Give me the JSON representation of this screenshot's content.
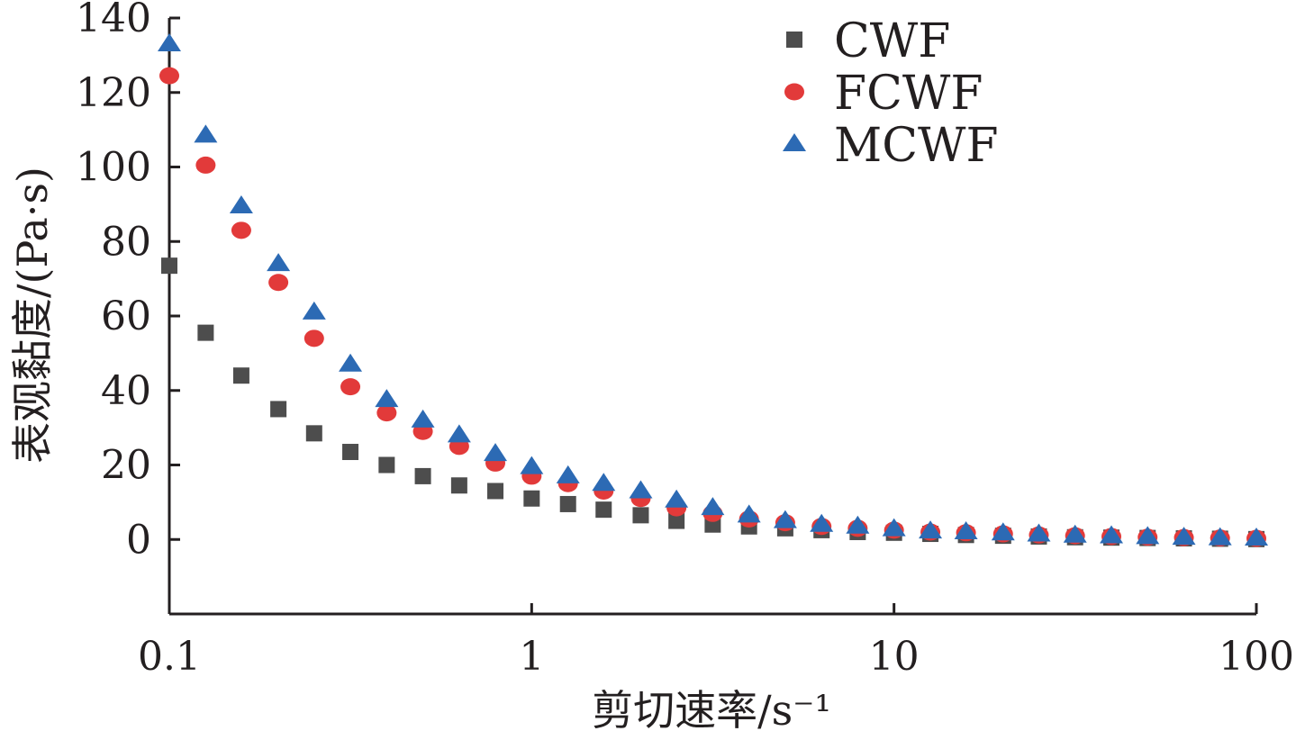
{
  "chart_data": {
    "type": "scatter",
    "xlabel": "剪切速率/s⁻¹",
    "ylabel": "表观黏度/(Pa·s)",
    "x_scale": "log",
    "xlim": [
      0.1,
      100
    ],
    "ylim": [
      -20,
      140
    ],
    "x_ticks": [
      0.1,
      1,
      10,
      100
    ],
    "x_tick_labels": [
      "0.1",
      "1",
      "10",
      "100"
    ],
    "y_ticks": [
      0,
      20,
      40,
      60,
      80,
      100,
      120,
      140
    ],
    "y_tick_labels": [
      "0",
      "20",
      "40",
      "60",
      "80",
      "100",
      "120",
      "140"
    ],
    "grid": false,
    "legend": "top-right",
    "x": [
      0.1,
      0.126,
      0.158,
      0.2,
      0.251,
      0.316,
      0.398,
      0.501,
      0.631,
      0.794,
      1,
      1.26,
      1.58,
      2,
      2.51,
      3.16,
      3.98,
      5.01,
      6.31,
      7.94,
      10,
      12.6,
      15.8,
      20,
      25.1,
      31.6,
      39.8,
      50.1,
      63.1,
      79.4,
      100
    ],
    "series": [
      {
        "name": "CWF",
        "marker": "square",
        "color": "#4d4d4d",
        "values": [
          73.5,
          55.5,
          44,
          35,
          28.5,
          23.5,
          20,
          17,
          14.5,
          13,
          11,
          9.5,
          8,
          6.5,
          5,
          4,
          3.5,
          3,
          2.5,
          2,
          1.8,
          1.5,
          1.2,
          1,
          0.8,
          0.6,
          0.5,
          0.4,
          0.3,
          0.2,
          0.1
        ]
      },
      {
        "name": "FCWF",
        "marker": "circle",
        "color": "#e23a3a",
        "values": [
          124.5,
          100.5,
          83,
          69,
          54,
          41,
          34,
          29,
          25,
          20.5,
          17,
          15,
          13,
          11,
          8.5,
          7,
          5.5,
          4.5,
          3.5,
          3,
          2.5,
          2,
          1.8,
          1.5,
          1.2,
          1,
          0.8,
          0.6,
          0.5,
          0.4,
          0.3
        ]
      },
      {
        "name": "MCWF",
        "marker": "triangle",
        "color": "#2c6ab4",
        "values": [
          133,
          108.5,
          89.5,
          74,
          61,
          47,
          37.5,
          32,
          28,
          23,
          19.5,
          17,
          15,
          13,
          10.5,
          8.5,
          6.5,
          5,
          4,
          3.5,
          2.8,
          2.2,
          2,
          1.7,
          1.4,
          1.1,
          0.9,
          0.7,
          0.5,
          0.4,
          0.3
        ]
      }
    ]
  }
}
